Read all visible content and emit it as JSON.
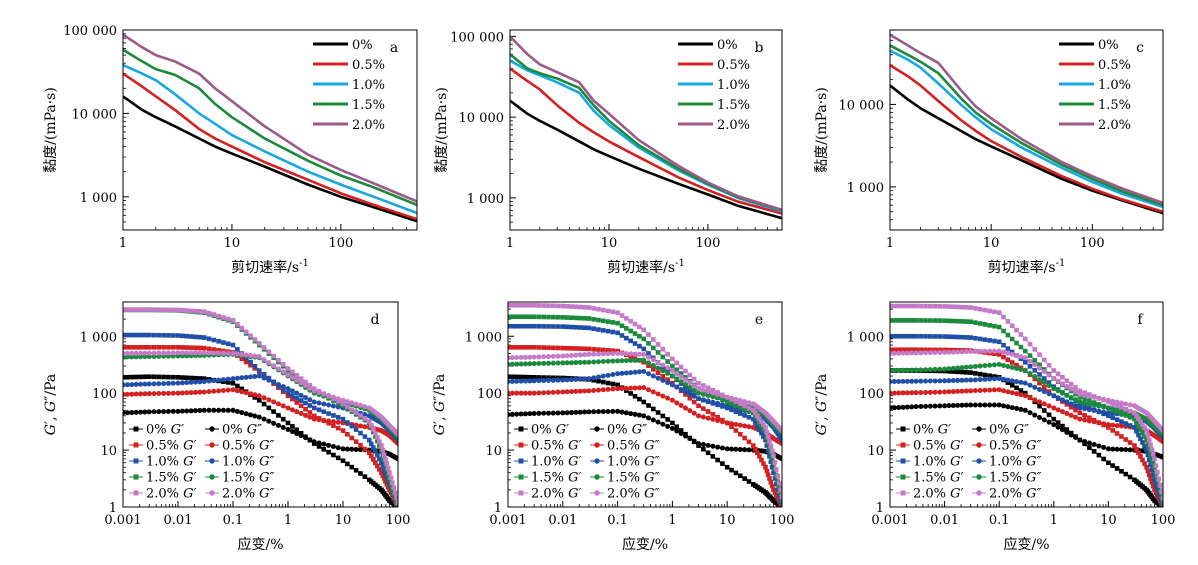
{
  "colors": {
    "0%": "#000000",
    "0.5%": "#d42020",
    "1.0%": "#18a8e0",
    "1.5%": "#1b8a3c",
    "2.0%": "#9b5a8a"
  },
  "dark_colors": {
    "0%": "#000000",
    "0.5%": "#d42020",
    "1.0%": "#1f4fa8",
    "1.5%": "#1b8a3c",
    "2.0%": "#c47ac8"
  },
  "chart_data": [
    {
      "label": "a",
      "type": "line",
      "xscale": "log",
      "yscale": "log",
      "xlabel": "剪切速率/s-1",
      "ylabel": "黏度/(mPa·s)",
      "xlim": [
        1,
        500
      ],
      "ylim": [
        400,
        100000
      ],
      "xticks": [
        1,
        10,
        100
      ],
      "xtick_labels": [
        "1",
        "10",
        "100"
      ],
      "yticks": [
        1000,
        10000,
        100000
      ],
      "ytick_labels": [
        "1 000",
        "10 000",
        "100 000"
      ],
      "legend": [
        "0%",
        "0.5%",
        "1.0%",
        "1.5%",
        "2.0%"
      ],
      "x": [
        1,
        1.5,
        2,
        3,
        5,
        7,
        10,
        20,
        50,
        100,
        200,
        500
      ],
      "series": [
        {
          "name": "0%",
          "values": [
            16000,
            11000,
            9000,
            7000,
            5000,
            4000,
            3300,
            2300,
            1400,
            1000,
            750,
            510
          ]
        },
        {
          "name": "0.5%",
          "values": [
            30000,
            21000,
            16000,
            11000,
            6500,
            5000,
            4000,
            2600,
            1600,
            1100,
            800,
            540
          ]
        },
        {
          "name": "1.0%",
          "values": [
            38000,
            30000,
            25000,
            17000,
            10000,
            7500,
            5500,
            3500,
            2000,
            1400,
            1000,
            640
          ]
        },
        {
          "name": "1.5%",
          "values": [
            58000,
            42000,
            34000,
            29000,
            20000,
            13000,
            9000,
            5000,
            2700,
            1800,
            1300,
            800
          ]
        },
        {
          "name": "2.0%",
          "values": [
            88000,
            62000,
            50000,
            42000,
            30000,
            20000,
            14000,
            7000,
            3200,
            2100,
            1450,
            880
          ]
        }
      ]
    },
    {
      "label": "b",
      "type": "line",
      "xscale": "log",
      "yscale": "log",
      "xlabel": "剪切速率/s-1",
      "ylabel": "黏度/(mPa·s)",
      "xlim": [
        1,
        560
      ],
      "ylim": [
        400,
        120000
      ],
      "xticks": [
        1,
        10,
        100
      ],
      "xtick_labels": [
        "1",
        "10",
        "100"
      ],
      "yticks": [
        1000,
        10000,
        100000
      ],
      "ytick_labels": [
        "1 000",
        "10 000",
        "100 000"
      ],
      "legend": [
        "0%",
        "0.5%",
        "1.0%",
        "1.5%",
        "2.0%"
      ],
      "x": [
        1,
        1.5,
        2,
        3,
        5,
        7,
        10,
        20,
        50,
        100,
        200,
        560
      ],
      "series": [
        {
          "name": "0%",
          "values": [
            16000,
            11000,
            9000,
            7000,
            5000,
            4000,
            3300,
            2300,
            1500,
            1100,
            800,
            560
          ]
        },
        {
          "name": "0.5%",
          "values": [
            40000,
            28000,
            22000,
            14000,
            8500,
            6500,
            5000,
            3200,
            1800,
            1250,
            900,
            640
          ]
        },
        {
          "name": "1.0%",
          "values": [
            50000,
            38000,
            33000,
            27000,
            20000,
            12000,
            8000,
            4200,
            2200,
            1450,
            1000,
            680
          ]
        },
        {
          "name": "1.5%",
          "values": [
            60000,
            40000,
            35000,
            30000,
            23000,
            14000,
            9000,
            4500,
            2300,
            1500,
            1020,
            700
          ]
        },
        {
          "name": "2.0%",
          "values": [
            100000,
            60000,
            45000,
            36000,
            27000,
            16000,
            11000,
            5200,
            2500,
            1550,
            1050,
            710
          ]
        }
      ]
    },
    {
      "label": "c",
      "type": "line",
      "xscale": "log",
      "yscale": "log",
      "xlabel": "剪切速率/s-1",
      "ylabel": "黏度/(mPa·s)",
      "xlim": [
        1,
        500
      ],
      "ylim": [
        300,
        80000
      ],
      "xticks": [
        1,
        10,
        100
      ],
      "xtick_labels": [
        "1",
        "10",
        "100"
      ],
      "yticks": [
        1000,
        10000
      ],
      "ytick_labels": [
        "1 000",
        "10 000"
      ],
      "legend": [
        "0%",
        "0.5%",
        "1.0%",
        "1.5%",
        "2.0%"
      ],
      "x": [
        1,
        1.5,
        2,
        3,
        5,
        7,
        10,
        20,
        50,
        100,
        200,
        500
      ],
      "series": [
        {
          "name": "0%",
          "values": [
            17000,
            11500,
            9000,
            6800,
            4800,
            3800,
            3100,
            2100,
            1250,
            900,
            680,
            480
          ]
        },
        {
          "name": "0.5%",
          "values": [
            30000,
            22000,
            17000,
            11000,
            6500,
            4800,
            3600,
            2300,
            1350,
            950,
            700,
            500
          ]
        },
        {
          "name": "1.0%",
          "values": [
            45000,
            35000,
            28000,
            18000,
            10000,
            7000,
            5000,
            3000,
            1700,
            1150,
            820,
            570
          ]
        },
        {
          "name": "1.5%",
          "values": [
            52000,
            40000,
            33000,
            24000,
            12000,
            8000,
            5800,
            3400,
            1850,
            1250,
            880,
            600
          ]
        },
        {
          "name": "2.0%",
          "values": [
            70000,
            52000,
            42000,
            32000,
            15000,
            9500,
            6800,
            3800,
            2000,
            1350,
            950,
            640
          ]
        }
      ]
    },
    {
      "label": "d",
      "type": "scatter-line",
      "xscale": "log",
      "yscale": "log",
      "xlabel": "应变/%",
      "ylabel": "G′, G″/Pa",
      "xlim": [
        0.001,
        100
      ],
      "ylim": [
        1,
        4000
      ],
      "xticks": [
        0.001,
        0.01,
        0.1,
        1,
        10,
        100
      ],
      "xtick_labels": [
        "0.001",
        "0.01",
        "0.1",
        "1",
        "10",
        "100"
      ],
      "yticks": [
        1,
        10,
        100,
        1000
      ],
      "ytick_labels": [
        "1",
        "10",
        "100",
        "1 000"
      ],
      "legend": [
        "0% G′",
        "0% G″",
        "0.5% G′",
        "0.5% G″",
        "1.0% G′",
        "1.0% G″",
        "1.5% G′",
        "1.5% G″",
        "2.0% G′",
        "2.0% G″"
      ],
      "x": [
        0.001,
        0.003,
        0.01,
        0.03,
        0.1,
        0.3,
        1,
        3,
        10,
        30,
        50,
        70,
        100
      ],
      "series": [
        {
          "name": "0% G′",
          "values": [
            190,
            195,
            190,
            180,
            150,
            75,
            30,
            13,
            6.5,
            3,
            2,
            1.3,
            1
          ]
        },
        {
          "name": "0% G″",
          "values": [
            45,
            47,
            48,
            50,
            50,
            38,
            23,
            14,
            10.5,
            10,
            9.5,
            8.5,
            7
          ]
        },
        {
          "name": "0.5% G′",
          "values": [
            640,
            640,
            640,
            620,
            520,
            240,
            90,
            40,
            22,
            9,
            4,
            2,
            1
          ]
        },
        {
          "name": "0.5% G″",
          "values": [
            95,
            98,
            100,
            105,
            115,
            90,
            55,
            35,
            30,
            25,
            22,
            18,
            13
          ]
        },
        {
          "name": "1.0% G′",
          "values": [
            1050,
            1050,
            1030,
            950,
            700,
            250,
            100,
            55,
            35,
            15,
            6,
            2.5,
            1
          ]
        },
        {
          "name": "1.0% G″",
          "values": [
            140,
            145,
            150,
            160,
            180,
            200,
            120,
            70,
            55,
            40,
            30,
            22,
            15
          ]
        },
        {
          "name": "1.5% G′",
          "values": [
            2900,
            2900,
            2850,
            2600,
            1800,
            700,
            250,
            110,
            60,
            30,
            10,
            3,
            1
          ]
        },
        {
          "name": "1.5% G″",
          "values": [
            430,
            440,
            450,
            460,
            480,
            420,
            200,
            100,
            70,
            50,
            35,
            25,
            17
          ]
        },
        {
          "name": "2.0% G′",
          "values": [
            2950,
            2950,
            2900,
            2700,
            1900,
            750,
            270,
            120,
            65,
            32,
            12,
            4,
            1.2
          ]
        },
        {
          "name": "2.0% G″",
          "values": [
            500,
            505,
            510,
            510,
            500,
            440,
            210,
            110,
            75,
            55,
            38,
            27,
            19
          ]
        }
      ]
    },
    {
      "label": "e",
      "type": "scatter-line",
      "xscale": "log",
      "yscale": "log",
      "xlabel": "应变/%",
      "ylabel": "G′, G″/Pa",
      "xlim": [
        0.001,
        100
      ],
      "ylim": [
        1,
        4000
      ],
      "xticks": [
        0.001,
        0.01,
        0.1,
        1,
        10,
        100
      ],
      "xtick_labels": [
        "0.001",
        "0.01",
        "0.1",
        "1",
        "10",
        "100"
      ],
      "yticks": [
        1,
        10,
        100,
        1000
      ],
      "ytick_labels": [
        "1",
        "10",
        "100",
        "1 000"
      ],
      "legend": [
        "0% G′",
        "0% G″",
        "0.5% G′",
        "0.5% G″",
        "1.0% G′",
        "1.0% G″",
        "1.5% G′",
        "1.5% G″",
        "2.0% G′",
        "2.0% G″"
      ],
      "x": [
        0.001,
        0.003,
        0.01,
        0.03,
        0.1,
        0.3,
        1,
        3,
        10,
        30,
        50,
        70,
        100
      ],
      "series": [
        {
          "name": "0% G′",
          "values": [
            195,
            190,
            185,
            175,
            140,
            70,
            30,
            12,
            5,
            2.5,
            1.8,
            1.3,
            1
          ]
        },
        {
          "name": "0% G″",
          "values": [
            42,
            44,
            45,
            47,
            48,
            40,
            24,
            13,
            10.5,
            10,
            9.5,
            8.5,
            7
          ]
        },
        {
          "name": "0.5% G′",
          "values": [
            640,
            640,
            620,
            600,
            550,
            350,
            150,
            60,
            30,
            12,
            5,
            2,
            1
          ]
        },
        {
          "name": "0.5% G″",
          "values": [
            100,
            100,
            105,
            110,
            120,
            125,
            75,
            40,
            30,
            25,
            20,
            16,
            13
          ]
        },
        {
          "name": "1.0% G′",
          "values": [
            1500,
            1500,
            1480,
            1400,
            1150,
            600,
            200,
            80,
            55,
            35,
            15,
            4,
            1
          ]
        },
        {
          "name": "1.0% G″",
          "values": [
            160,
            165,
            170,
            180,
            220,
            240,
            140,
            80,
            60,
            45,
            35,
            25,
            15
          ]
        },
        {
          "name": "1.5% G′",
          "values": [
            2200,
            2200,
            2150,
            2050,
            1700,
            900,
            300,
            120,
            70,
            45,
            20,
            6,
            1.3
          ]
        },
        {
          "name": "1.5% G″",
          "values": [
            320,
            330,
            340,
            350,
            370,
            380,
            200,
            100,
            75,
            55,
            40,
            28,
            20
          ]
        },
        {
          "name": "2.0% G′",
          "values": [
            3500,
            3500,
            3400,
            3200,
            2600,
            1300,
            400,
            150,
            85,
            50,
            25,
            8,
            1.5
          ]
        },
        {
          "name": "2.0% G″",
          "values": [
            420,
            430,
            450,
            480,
            500,
            480,
            250,
            120,
            85,
            65,
            45,
            32,
            22
          ]
        }
      ]
    },
    {
      "label": "f",
      "type": "scatter-line",
      "xscale": "log",
      "yscale": "log",
      "xlabel": "应变/%",
      "ylabel": "G′, G″/Pa",
      "xlim": [
        0.001,
        100
      ],
      "ylim": [
        1,
        4000
      ],
      "xticks": [
        0.001,
        0.01,
        0.1,
        1,
        10,
        100
      ],
      "xtick_labels": [
        "0.001",
        "0.01",
        "0.1",
        "1",
        "10",
        "100"
      ],
      "yticks": [
        1,
        10,
        100,
        1000
      ],
      "ytick_labels": [
        "1",
        "10",
        "100",
        "1 000"
      ],
      "legend": [
        "0% G′",
        "0% G″",
        "0.5% G′",
        "0.5% G″",
        "1.0% G′",
        "1.0% G″",
        "1.5% G′",
        "1.5% G″",
        "2.0% G′",
        "2.0% G″"
      ],
      "x": [
        0.001,
        0.003,
        0.01,
        0.03,
        0.1,
        0.3,
        1,
        3,
        10,
        30,
        50,
        70,
        100
      ],
      "series": [
        {
          "name": "0% G′",
          "values": [
            250,
            250,
            245,
            230,
            190,
            100,
            35,
            15,
            6,
            3,
            2,
            1.3,
            1
          ]
        },
        {
          "name": "0% G″",
          "values": [
            55,
            58,
            60,
            62,
            62,
            50,
            28,
            15,
            10.5,
            10,
            9.5,
            8.5,
            7.5
          ]
        },
        {
          "name": "0.5% G′",
          "values": [
            580,
            580,
            575,
            560,
            480,
            250,
            90,
            45,
            25,
            12,
            5,
            2,
            1
          ]
        },
        {
          "name": "0.5% G″",
          "values": [
            100,
            102,
            105,
            110,
            115,
            90,
            55,
            35,
            28,
            25,
            22,
            18,
            14
          ]
        },
        {
          "name": "1.0% G′",
          "values": [
            1000,
            1000,
            990,
            950,
            800,
            350,
            130,
            65,
            40,
            25,
            10,
            3,
            1
          ]
        },
        {
          "name": "1.0% G″",
          "values": [
            160,
            162,
            165,
            170,
            180,
            150,
            90,
            55,
            45,
            40,
            32,
            24,
            17
          ]
        },
        {
          "name": "1.5% G′",
          "values": [
            1900,
            1900,
            1880,
            1800,
            1450,
            550,
            180,
            85,
            55,
            35,
            15,
            5,
            1.2
          ]
        },
        {
          "name": "1.5% G″",
          "values": [
            250,
            255,
            265,
            290,
            320,
            250,
            120,
            70,
            55,
            45,
            35,
            26,
            19
          ]
        },
        {
          "name": "2.0% G′",
          "values": [
            3400,
            3400,
            3350,
            3200,
            2600,
            900,
            250,
            110,
            70,
            45,
            22,
            7,
            1.4
          ]
        },
        {
          "name": "2.0% G″",
          "values": [
            500,
            510,
            520,
            540,
            550,
            420,
            180,
            95,
            75,
            60,
            45,
            32,
            22
          ]
        }
      ]
    }
  ]
}
